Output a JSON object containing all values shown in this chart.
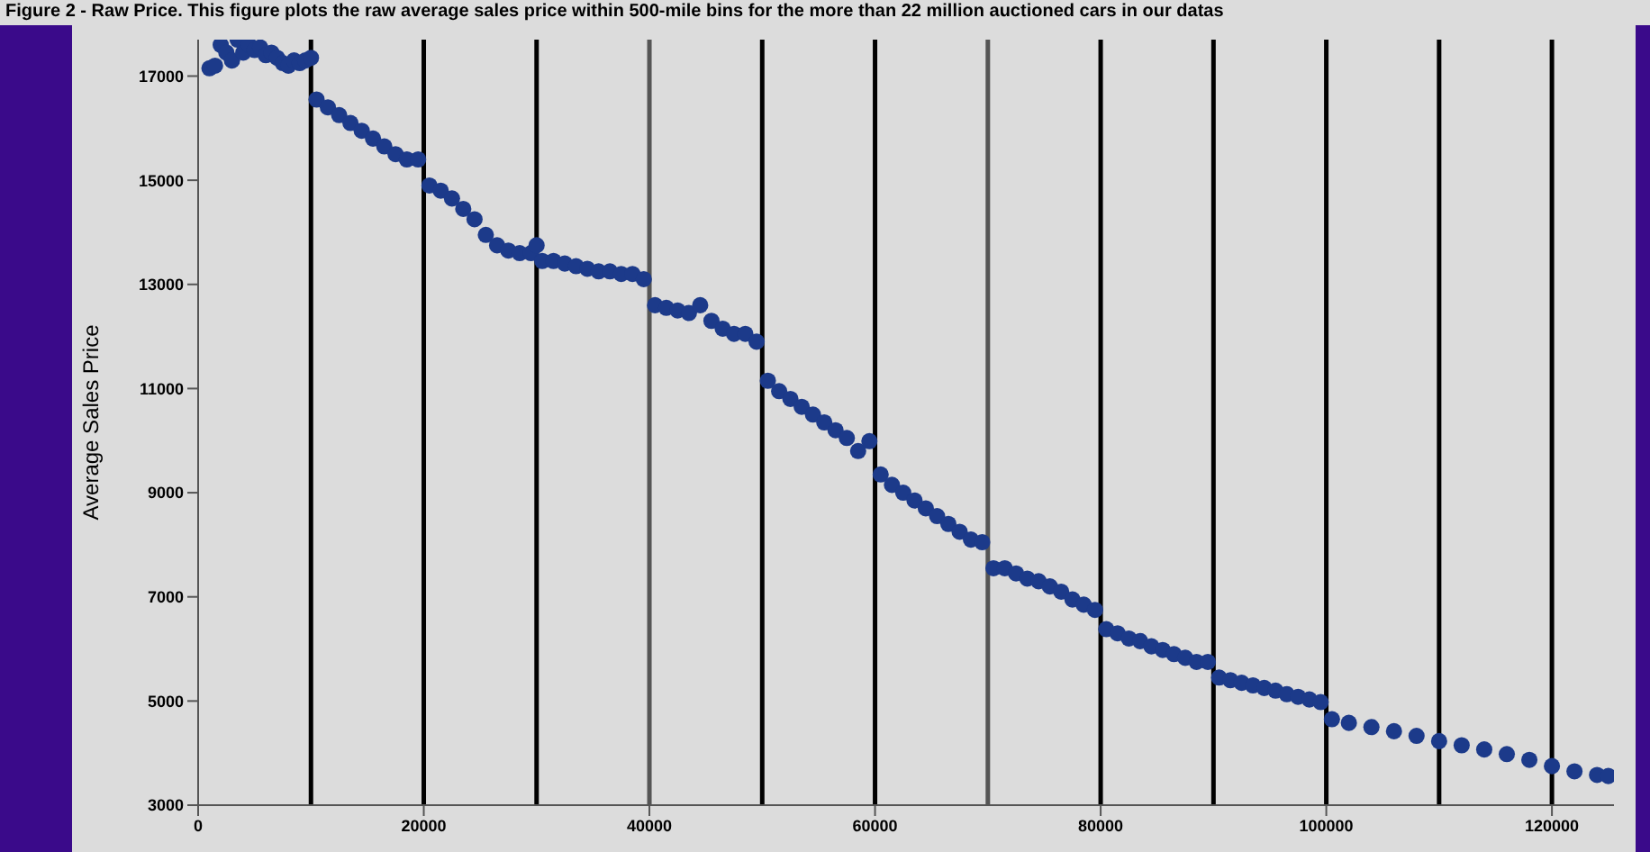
{
  "chart_data": {
    "type": "scatter",
    "title": "Figure 2 - Raw Price.  This figure plots the raw average sales price within 500-mile bins for the more than 22 million auctioned cars in our datas",
    "ylabel": "Average Sales Price",
    "marker": "circle",
    "grid": false,
    "legend": false,
    "xlim": [
      0,
      125500
    ],
    "xticks": [
      0,
      20000,
      40000,
      60000,
      80000,
      100000,
      120000
    ],
    "ylim": [
      3000,
      17700
    ],
    "yticks": [
      3000,
      5000,
      7000,
      9000,
      11000,
      13000,
      15000,
      17000
    ],
    "ref_lines": [
      {
        "axis": "x",
        "value": 10000,
        "color": "#000000"
      },
      {
        "axis": "x",
        "value": 20000,
        "color": "#000000"
      },
      {
        "axis": "x",
        "value": 30000,
        "color": "#000000"
      },
      {
        "axis": "x",
        "value": 40000,
        "color": "#555555"
      },
      {
        "axis": "x",
        "value": 50000,
        "color": "#000000"
      },
      {
        "axis": "x",
        "value": 60000,
        "color": "#000000"
      },
      {
        "axis": "x",
        "value": 70000,
        "color": "#555555"
      },
      {
        "axis": "x",
        "value": 80000,
        "color": "#000000"
      },
      {
        "axis": "x",
        "value": 90000,
        "color": "#000000"
      },
      {
        "axis": "x",
        "value": 100000,
        "color": "#000000"
      },
      {
        "axis": "x",
        "value": 110000,
        "color": "#000000"
      },
      {
        "axis": "x",
        "value": 120000,
        "color": "#000000"
      }
    ],
    "series": [
      {
        "color": "#1c3a8a",
        "x": [
          1000,
          1500,
          2000,
          2500,
          3000,
          3500,
          4000,
          4500,
          5000,
          5500,
          6000,
          6500,
          7000,
          7500,
          8000,
          8500,
          9000,
          9500,
          10000,
          10500,
          11500,
          12500,
          13500,
          14500,
          15500,
          16500,
          17500,
          18500,
          19500,
          20500,
          21500,
          22500,
          23500,
          24500,
          25500,
          26500,
          27500,
          28500,
          29500,
          30000,
          30500,
          31500,
          32500,
          33500,
          34500,
          35500,
          36500,
          37500,
          38500,
          39500,
          40500,
          41500,
          42500,
          43500,
          44500,
          45500,
          46500,
          47500,
          48500,
          49500,
          50500,
          51500,
          52500,
          53500,
          54500,
          55500,
          56500,
          57500,
          58500,
          59500,
          60500,
          61500,
          62500,
          63500,
          64500,
          65500,
          66500,
          67500,
          68500,
          69500,
          70500,
          71500,
          72500,
          73500,
          74500,
          75500,
          76500,
          77500,
          78500,
          79500,
          80500,
          81500,
          82500,
          83500,
          84500,
          85500,
          86500,
          87500,
          88500,
          89500,
          90500,
          91500,
          92500,
          93500,
          94500,
          95500,
          96500,
          97500,
          98500,
          99500,
          100500,
          102000,
          104000,
          106000,
          108000,
          110000,
          112000,
          114000,
          116000,
          118000,
          120000,
          122000,
          124000,
          125000
        ],
        "values": [
          17150,
          17200,
          17600,
          17450,
          17300,
          17700,
          17450,
          17600,
          17500,
          17550,
          17400,
          17450,
          17350,
          17250,
          17200,
          17300,
          17250,
          17300,
          17350,
          16550,
          16400,
          16250,
          16100,
          15950,
          15800,
          15650,
          15500,
          15400,
          15400,
          14900,
          14800,
          14650,
          14450,
          14250,
          13950,
          13750,
          13650,
          13600,
          13600,
          13750,
          13450,
          13450,
          13400,
          13350,
          13300,
          13250,
          13250,
          13200,
          13200,
          13100,
          12600,
          12550,
          12500,
          12450,
          12600,
          12300,
          12150,
          12050,
          12050,
          11900,
          11150,
          10950,
          10800,
          10650,
          10500,
          10350,
          10200,
          10050,
          9800,
          9990,
          9350,
          9150,
          9000,
          8850,
          8700,
          8550,
          8400,
          8250,
          8100,
          8050,
          7550,
          7550,
          7450,
          7350,
          7300,
          7200,
          7100,
          6950,
          6850,
          6750,
          6380,
          6300,
          6200,
          6150,
          6050,
          5980,
          5900,
          5830,
          5750,
          5750,
          5450,
          5400,
          5350,
          5300,
          5250,
          5200,
          5130,
          5080,
          5030,
          4980,
          4650,
          4580,
          4500,
          4420,
          4330,
          4230,
          4150,
          4070,
          3980,
          3870,
          3750,
          3650,
          3580,
          3560
        ]
      }
    ]
  }
}
